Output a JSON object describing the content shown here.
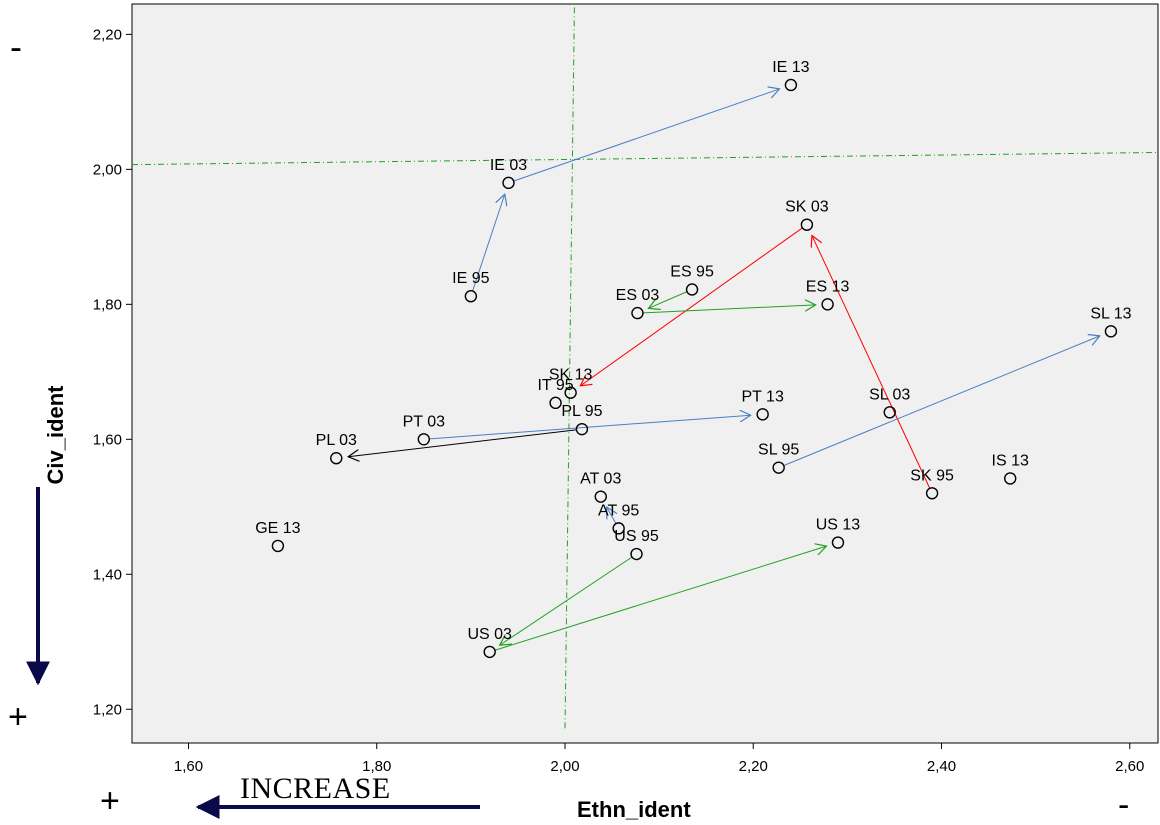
{
  "chart_data": {
    "type": "scatter",
    "xlabel": "Ethn_ident",
    "ylabel": "Civ_ident",
    "xlim": [
      1.54,
      2.63
    ],
    "ylim": [
      1.15,
      2.245
    ],
    "xticks": [
      {
        "value": 1.6,
        "label": "1,60"
      },
      {
        "value": 1.8,
        "label": "1,80"
      },
      {
        "value": 2.0,
        "label": "2,00"
      },
      {
        "value": 2.2,
        "label": "2,20"
      },
      {
        "value": 2.4,
        "label": "2,40"
      },
      {
        "value": 2.6,
        "label": "2,60"
      }
    ],
    "yticks": [
      {
        "value": 1.2,
        "label": "1,20"
      },
      {
        "value": 1.4,
        "label": "1,40"
      },
      {
        "value": 1.6,
        "label": "1,60"
      },
      {
        "value": 1.8,
        "label": "1,80"
      },
      {
        "value": 2.0,
        "label": "2,00"
      },
      {
        "value": 2.2,
        "label": "2,20"
      }
    ],
    "points": [
      {
        "label": "IE 13",
        "x": 2.24,
        "y": 2.125
      },
      {
        "label": "IE 03",
        "x": 1.94,
        "y": 1.98
      },
      {
        "label": "IE 95",
        "x": 1.9,
        "y": 1.812
      },
      {
        "label": "SK 03",
        "x": 2.257,
        "y": 1.918
      },
      {
        "label": "ES 95",
        "x": 2.135,
        "y": 1.822
      },
      {
        "label": "ES 03",
        "x": 2.077,
        "y": 1.787
      },
      {
        "label": "ES 13",
        "x": 2.279,
        "y": 1.8
      },
      {
        "label": "SL 13",
        "x": 2.58,
        "y": 1.76
      },
      {
        "label": "SK 13",
        "x": 2.006,
        "y": 1.669
      },
      {
        "label": "IT 95",
        "x": 1.99,
        "y": 1.654
      },
      {
        "label": "PL 95",
        "x": 2.018,
        "y": 1.615
      },
      {
        "label": "PT 13",
        "x": 2.21,
        "y": 1.637
      },
      {
        "label": "SL 03",
        "x": 2.345,
        "y": 1.64
      },
      {
        "label": "PT 03",
        "x": 1.85,
        "y": 1.6
      },
      {
        "label": "PL 03",
        "x": 1.757,
        "y": 1.572
      },
      {
        "label": "SL 95",
        "x": 2.227,
        "y": 1.558
      },
      {
        "label": "SK 95",
        "x": 2.39,
        "y": 1.52
      },
      {
        "label": "IS 13",
        "x": 2.473,
        "y": 1.542
      },
      {
        "label": "AT 03",
        "x": 2.038,
        "y": 1.515
      },
      {
        "label": "AT 95",
        "x": 2.057,
        "y": 1.468
      },
      {
        "label": "US 95",
        "x": 2.076,
        "y": 1.43
      },
      {
        "label": "US 13",
        "x": 2.29,
        "y": 1.447
      },
      {
        "label": "GE 13",
        "x": 1.695,
        "y": 1.442
      },
      {
        "label": "US 03",
        "x": 1.92,
        "y": 1.285
      }
    ],
    "reference_lines": {
      "vertical": {
        "x1": 2.01,
        "y1": 2.24,
        "x2": 2.0,
        "y2": 1.17
      },
      "horizontal": {
        "x1": 1.54,
        "y1": 2.007,
        "x2": 2.63,
        "y2": 2.025
      }
    },
    "arrows": [
      {
        "from": "IE 95",
        "to": "IE 03",
        "color": "#4a7fc1"
      },
      {
        "from": "IE 03",
        "to": "IE 13",
        "color": "#4a7fc1"
      },
      {
        "from": "SK 95",
        "to": "SK 03",
        "color": "#ff0000"
      },
      {
        "from": "SK 03",
        "to": "SK 13",
        "color": "#ff0000"
      },
      {
        "from": "ES 95",
        "to": "ES 03",
        "color": "#22a022"
      },
      {
        "from": "ES 03",
        "to": "ES 13",
        "color": "#22a022"
      },
      {
        "from": "SL 95",
        "to": "SL 13",
        "color": "#4a7fc1"
      },
      {
        "from": "PT 03",
        "to": "PT 13",
        "color": "#4a7fc1"
      },
      {
        "from": "PL 95",
        "to": "PL 03",
        "color": "#000000"
      },
      {
        "from": "AT 95",
        "to": "AT 03",
        "color": "#4a7fc1"
      },
      {
        "from": "US 95",
        "to": "US 03",
        "color": "#22a022"
      },
      {
        "from": "US 03",
        "to": "US 13",
        "color": "#22a022"
      }
    ],
    "plot_background": "#f0f0f0",
    "reference_line_color": "#22a022"
  },
  "annotations": {
    "top_sign": "-",
    "bottom_left_sign": "+",
    "x_left_sign": "+",
    "x_right_sign": "-",
    "increase_text": "INCREASE",
    "arrow_color": "#0a0a4a"
  }
}
